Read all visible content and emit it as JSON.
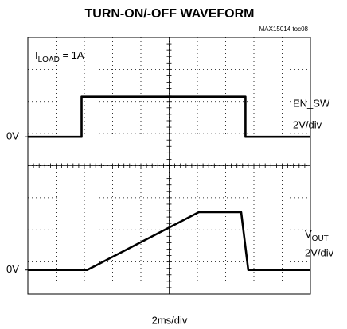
{
  "chart_data": {
    "type": "line",
    "title": "TURN-ON/-OFF WAVEFORM",
    "figure_id": "MAX15014 toc08",
    "annotation": {
      "main": "I",
      "sub": "LOAD",
      "rest": " = 1A"
    },
    "x_scale": "2ms/div",
    "xlim": [
      0,
      20
    ],
    "series": [
      {
        "name": "EN_SW",
        "scale": "2V/div",
        "color": "#000000",
        "x": [
          0,
          3.8,
          3.8,
          15.4,
          15.4,
          20
        ],
        "values": [
          0,
          0,
          2.5,
          2.5,
          0,
          0
        ],
        "ylim": [
          -9.8,
          6.2
        ],
        "yticks": [
          {
            "value": 0,
            "label": "0V"
          }
        ]
      },
      {
        "name": "V",
        "name_sub": "OUT",
        "scale": "2V/div",
        "color": "#000000",
        "x": [
          0,
          4.2,
          12.1,
          15.1,
          15.6,
          20
        ],
        "values": [
          0,
          0,
          3.6,
          3.6,
          0,
          0
        ],
        "ylim": [
          -1.5,
          14.5
        ],
        "yticks": [
          {
            "value": 0,
            "label": "0V"
          }
        ]
      }
    ]
  }
}
